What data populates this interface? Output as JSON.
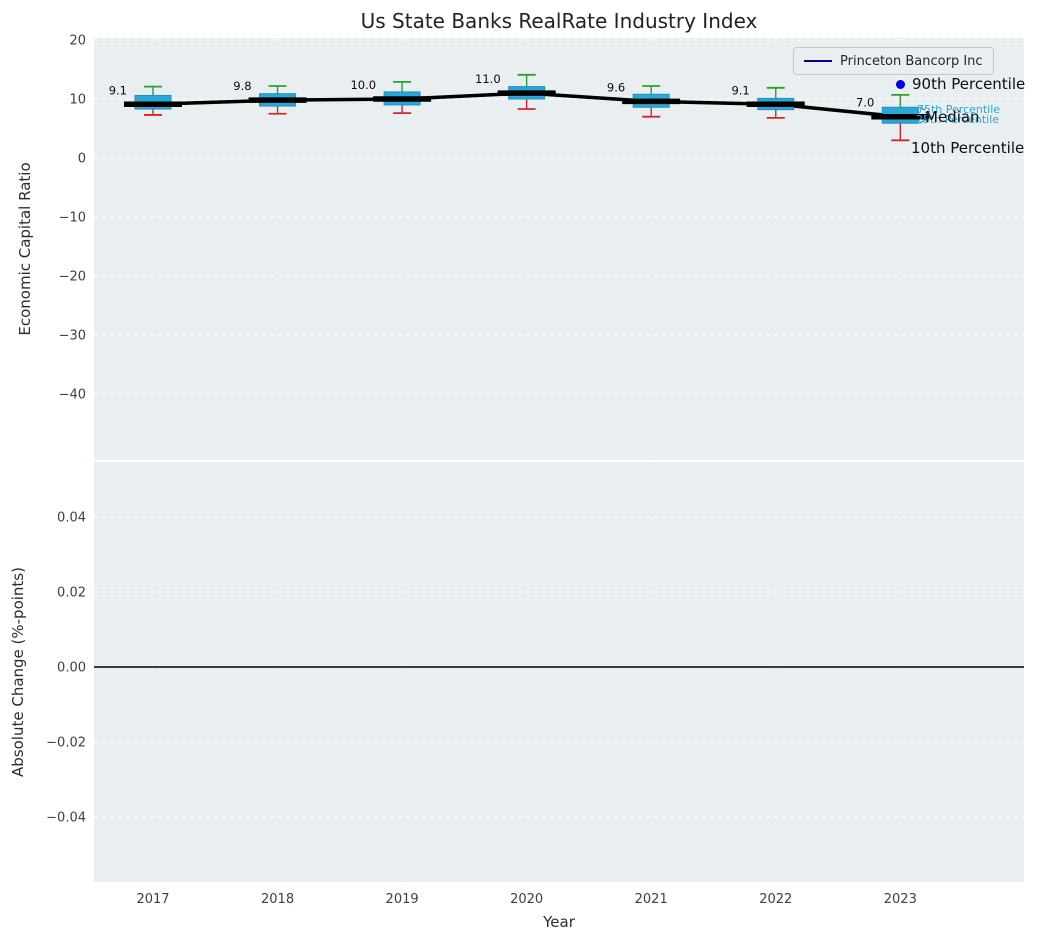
{
  "title": "Us State Banks RealRate Industry Index",
  "legend": {
    "label": "Princeton Bancorp Inc",
    "line_color": "#00008b"
  },
  "annotations": {
    "p90": "90th Percentile",
    "p75": "75th Percentile",
    "p25": "25th Percentile",
    "median": "Median",
    "p10": "10th Percentile"
  },
  "colors": {
    "axes_bg": "#e9eef0",
    "grid": "#ffffff",
    "box_fill": "#2aa7d6",
    "box_edge": "#1f8fc0",
    "median_line": "#000000",
    "whisker_top": "#2ca02c",
    "whisker_bottom": "#d62728",
    "tick_text": "#3d3d4d",
    "value_label": "#0a0a0a",
    "zero_line": "#000000",
    "marker_blue": "#0000ee"
  },
  "chart_data": [
    {
      "type": "boxplot-line",
      "title": "Us State Banks RealRate Industry Index",
      "xlabel": "",
      "ylabel": "Economic Capital Ratio",
      "ylim": [
        -51,
        20.4
      ],
      "yticks": [
        20,
        10,
        0,
        -10,
        -20,
        -30,
        -40
      ],
      "grid": true,
      "legend_position": "upper right",
      "categories": [
        2017,
        2018,
        2019,
        2020,
        2021,
        2022,
        2023
      ],
      "series": [
        {
          "name": "median",
          "values": [
            9.1,
            9.8,
            10.0,
            11.0,
            9.6,
            9.1,
            7.0
          ]
        },
        {
          "name": "q3",
          "values": [
            10.6,
            10.9,
            11.2,
            12.1,
            10.8,
            10.1,
            8.6
          ]
        },
        {
          "name": "q1",
          "values": [
            8.3,
            8.8,
            9.0,
            10.0,
            8.6,
            8.2,
            5.9
          ]
        },
        {
          "name": "p90",
          "values": [
            12.1,
            12.2,
            12.9,
            14.1,
            12.2,
            11.9,
            10.7
          ]
        },
        {
          "name": "p10",
          "values": [
            7.3,
            7.5,
            7.6,
            8.3,
            7.0,
            6.8,
            3.0
          ]
        }
      ],
      "labels": [
        "9.1",
        "9.8",
        "10.0",
        "11.0",
        "9.6",
        "9.1",
        "7.0"
      ]
    },
    {
      "type": "bar",
      "xlabel": "Year",
      "ylabel": "Absolute Change (%-points)",
      "ylim": [
        -0.056,
        0.056
      ],
      "yticks": [
        0.04,
        0.02,
        0.0,
        -0.02,
        -0.04
      ],
      "grid": true,
      "baseline": 0,
      "categories": [
        2017,
        2018,
        2019,
        2020,
        2021,
        2022,
        2023
      ],
      "values": []
    }
  ]
}
